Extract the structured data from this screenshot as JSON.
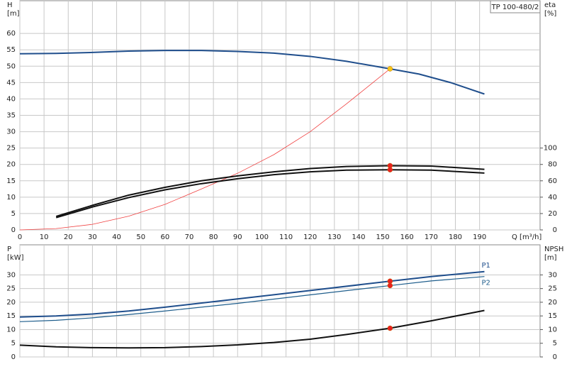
{
  "chart_data": [
    {
      "type": "line",
      "legend_box": "TP 100-480/2",
      "xlabel": "Q [m³/h]",
      "xlim": [
        0,
        215
      ],
      "xticks": [
        0,
        10,
        20,
        30,
        40,
        50,
        60,
        70,
        80,
        90,
        100,
        110,
        120,
        130,
        140,
        150,
        160,
        170,
        180,
        190
      ],
      "ylabel": "H",
      "yunit": "[m]",
      "ylim": [
        0,
        70
      ],
      "yticks": [
        0,
        5,
        10,
        15,
        20,
        25,
        30,
        35,
        40,
        45,
        50,
        55,
        60
      ],
      "y2label": "eta",
      "y2unit": "[%]",
      "y2lim": [
        0,
        280
      ],
      "y2ticks": [
        0,
        20,
        40,
        60,
        80,
        100
      ],
      "grid": true,
      "series": [
        {
          "color": "#1f4e8c",
          "line_width": 2,
          "axis": "y",
          "x": [
            0,
            15,
            30,
            45,
            60,
            75,
            90,
            105,
            120,
            135,
            153,
            165,
            178,
            192
          ],
          "values": [
            53.8,
            53.9,
            54.2,
            54.6,
            54.8,
            54.8,
            54.5,
            54,
            53,
            51.5,
            49.2,
            47.6,
            45,
            41.5
          ]
        },
        {
          "color": "#f04040",
          "line_width": 0.8,
          "axis": "y",
          "x": [
            0,
            15,
            30,
            45,
            60,
            75,
            90,
            105,
            120,
            135,
            153
          ],
          "values": [
            0,
            0.4,
            1.7,
            4.2,
            7.8,
            12.5,
            17.3,
            23,
            30,
            38.5,
            49.2
          ]
        },
        {
          "color": "#111111",
          "line_width": 2,
          "axis": "y2",
          "x": [
            15,
            30,
            45,
            60,
            75,
            90,
            105,
            120,
            135,
            153,
            170,
            192
          ],
          "values": [
            16.5,
            30,
            42.5,
            52,
            60,
            66,
            71,
            75,
            77.5,
            78.5,
            78,
            74
          ]
        },
        {
          "color": "#111111",
          "line_width": 2,
          "axis": "y2",
          "x": [
            15,
            30,
            45,
            60,
            75,
            90,
            105,
            120,
            135,
            153,
            170,
            192
          ],
          "values": [
            15,
            28,
            39.5,
            49,
            56.5,
            62.5,
            67.5,
            71,
            73,
            73.5,
            73,
            69.5
          ]
        }
      ],
      "points": [
        {
          "x": 153,
          "y": 49.2,
          "axis": "y",
          "color": "#f5c518"
        },
        {
          "x": 153,
          "y": 78.5,
          "axis": "y2",
          "color": "#e82020"
        },
        {
          "x": 153,
          "y": 73.5,
          "axis": "y2",
          "color": "#e82020"
        }
      ]
    },
    {
      "type": "line",
      "xlim": [
        0,
        215
      ],
      "xticks": [
        0,
        10,
        20,
        30,
        40,
        50,
        60,
        70,
        80,
        90,
        100,
        110,
        120,
        130,
        140,
        150,
        160,
        170,
        180,
        190
      ],
      "ylabel": "P",
      "yunit": "[kW]",
      "ylim": [
        0,
        41
      ],
      "yticks": [
        0,
        5,
        10,
        15,
        20,
        25,
        30
      ],
      "y2label": "NPSH",
      "y2unit": "[m]",
      "y2lim": [
        0,
        41
      ],
      "y2ticks": [
        0,
        5,
        10,
        15,
        20,
        25,
        30
      ],
      "grid": true,
      "series": [
        {
          "name": "P1",
          "color": "#1f4e8c",
          "line_width": 2,
          "axis": "y",
          "x": [
            0,
            15,
            30,
            45,
            60,
            90,
            120,
            153,
            170,
            192
          ],
          "values": [
            14.6,
            15,
            15.7,
            16.8,
            18.2,
            21.2,
            24.3,
            27.7,
            29.4,
            31.2
          ]
        },
        {
          "name": "P2",
          "color": "#1f5e8c",
          "line_width": 1.2,
          "axis": "y",
          "x": [
            0,
            15,
            30,
            45,
            60,
            90,
            120,
            153,
            170,
            192
          ],
          "values": [
            12.9,
            13.4,
            14.3,
            15.5,
            16.8,
            19.6,
            22.7,
            26.1,
            27.8,
            29.4
          ]
        },
        {
          "color": "#111111",
          "line_width": 2,
          "axis": "y2",
          "x": [
            0,
            15,
            30,
            45,
            60,
            75,
            90,
            105,
            120,
            135,
            153,
            170,
            192
          ],
          "values": [
            4.3,
            3.7,
            3.4,
            3.3,
            3.4,
            3.8,
            4.4,
            5.3,
            6.5,
            8.2,
            10.5,
            13.2,
            17
          ]
        }
      ],
      "points": [
        {
          "x": 153,
          "y": 27.7,
          "axis": "y",
          "color": "#e82020"
        },
        {
          "x": 153,
          "y": 26.1,
          "axis": "y",
          "color": "#e82020"
        },
        {
          "x": 153,
          "y": 10.5,
          "axis": "y2",
          "color": "#e82020"
        }
      ]
    }
  ]
}
